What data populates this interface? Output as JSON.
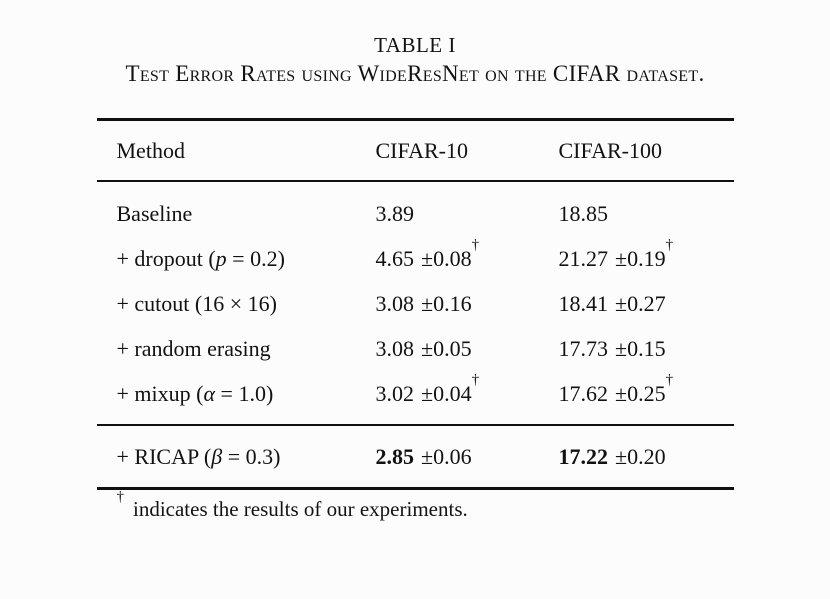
{
  "page": {
    "background": "#fcfcfc",
    "text_color": "#121212"
  },
  "table": {
    "title": "TABLE I",
    "caption": "Test Error Rates using WideResNet on the CIFAR dataset.",
    "columns": [
      "Method",
      "CIFAR-10",
      "CIFAR-100"
    ],
    "body_rows": [
      {
        "method": [
          {
            "text": "Baseline",
            "italic": false
          }
        ],
        "cifar10": {
          "main": "3.89",
          "pm": "",
          "dagger": false,
          "bold": false
        },
        "cifar100": {
          "main": "18.85",
          "pm": "",
          "dagger": false,
          "bold": false
        }
      },
      {
        "method": [
          {
            "text": "+ dropout (",
            "italic": false
          },
          {
            "text": "p",
            "italic": true
          },
          {
            "text": " = 0.2)",
            "italic": false
          }
        ],
        "cifar10": {
          "main": "4.65",
          "pm": "±0.08",
          "dagger": true,
          "bold": false
        },
        "cifar100": {
          "main": "21.27",
          "pm": "±0.19",
          "dagger": true,
          "bold": false
        }
      },
      {
        "method": [
          {
            "text": "+ cutout (16 × 16)",
            "italic": false
          }
        ],
        "cifar10": {
          "main": "3.08",
          "pm": "±0.16",
          "dagger": false,
          "bold": false
        },
        "cifar100": {
          "main": "18.41",
          "pm": "±0.27",
          "dagger": false,
          "bold": false
        }
      },
      {
        "method": [
          {
            "text": "+ random erasing",
            "italic": false
          }
        ],
        "cifar10": {
          "main": "3.08",
          "pm": "±0.05",
          "dagger": false,
          "bold": false
        },
        "cifar100": {
          "main": "17.73",
          "pm": "±0.15",
          "dagger": false,
          "bold": false
        }
      },
      {
        "method": [
          {
            "text": "+ mixup (",
            "italic": false
          },
          {
            "text": "α",
            "italic": true
          },
          {
            "text": " = 1.0)",
            "italic": false
          }
        ],
        "cifar10": {
          "main": "3.02",
          "pm": "±0.04",
          "dagger": true,
          "bold": false
        },
        "cifar100": {
          "main": "17.62",
          "pm": "±0.25",
          "dagger": true,
          "bold": false
        }
      }
    ],
    "highlight_rows": [
      {
        "method": [
          {
            "text": "+ RICAP (",
            "italic": false
          },
          {
            "text": "β",
            "italic": true
          },
          {
            "text": " = 0.3)",
            "italic": false
          }
        ],
        "cifar10": {
          "main": "2.85",
          "pm": "±0.06",
          "dagger": false,
          "bold": true
        },
        "cifar100": {
          "main": "17.22",
          "pm": "±0.20",
          "dagger": false,
          "bold": true
        }
      }
    ],
    "footnote_symbol": "†",
    "footnote": "indicates the results of our experiments."
  }
}
